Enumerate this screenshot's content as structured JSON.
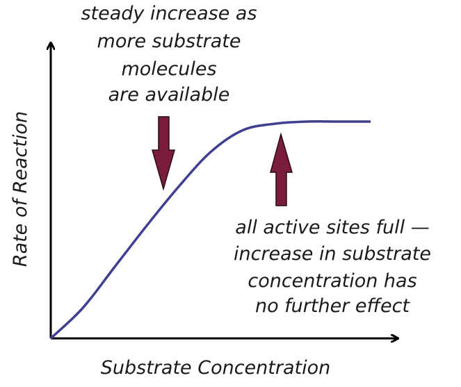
{
  "chart_data": {
    "type": "line",
    "title": "",
    "xlabel": "Substrate Concentration",
    "ylabel": "Rate of Reaction",
    "axis_ticks": false,
    "grid": false,
    "series": [
      {
        "color": "#3f3f8f",
        "shape": "saturation curve: steady rise then plateau",
        "x": [
          0,
          0.1,
          0.2,
          0.3,
          0.4,
          0.5,
          0.6,
          0.7,
          0.8,
          0.9,
          1.0
        ],
        "y": [
          0,
          0.14,
          0.33,
          0.52,
          0.7,
          0.86,
          0.96,
          0.99,
          1.0,
          1.0,
          1.0
        ]
      }
    ],
    "annotations": [
      {
        "id": "rise",
        "lines": [
          "steady increase as",
          "more substrate",
          "molecules",
          "are available"
        ],
        "arrow_color": "#7a1c3b",
        "points_to": "rising part of curve"
      },
      {
        "id": "plateau",
        "lines": [
          "all active sites full —",
          "increase in substrate",
          "concentration has",
          "no further effect"
        ],
        "arrow_color": "#7a1c3b",
        "points_to": "plateau of curve"
      }
    ]
  }
}
